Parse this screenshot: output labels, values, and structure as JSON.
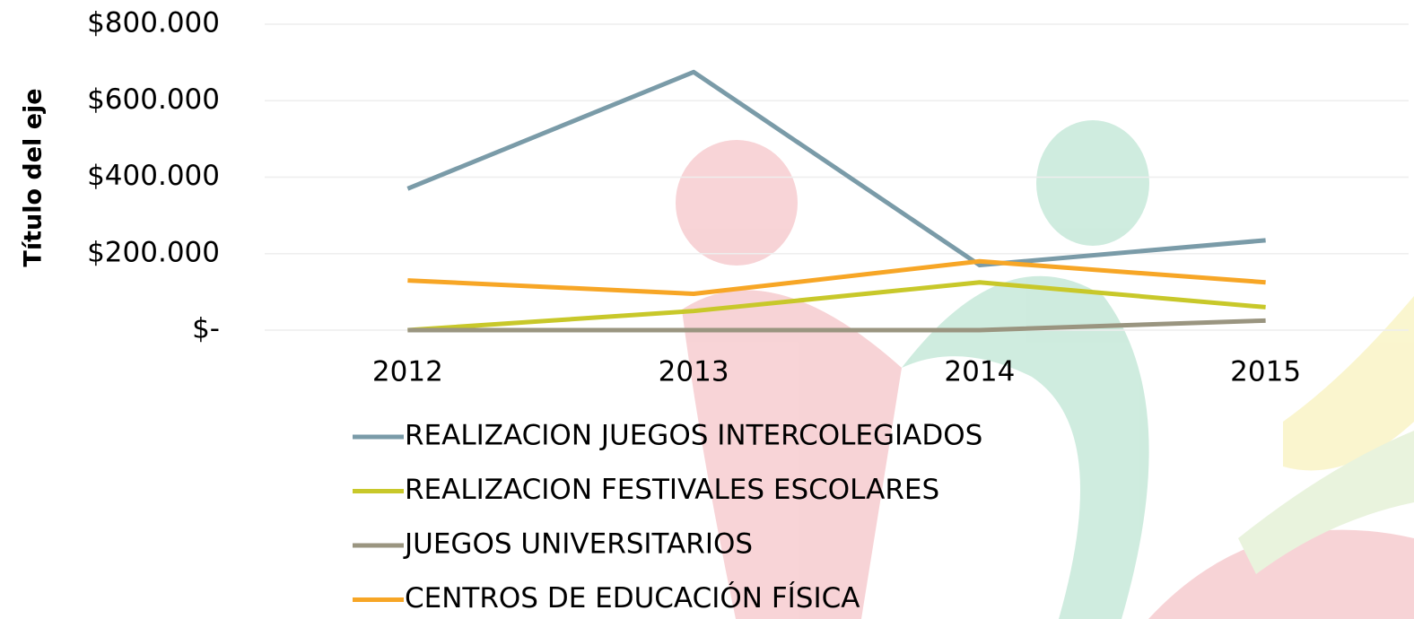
{
  "chart_data": {
    "type": "line",
    "y_axis_label": "Título del eje",
    "categories": [
      "2012",
      "2013",
      "2014",
      "2015"
    ],
    "series": [
      {
        "name": "REALIZACION JUEGOS INTERCOLEGIADOS",
        "color": "#7a9ba8",
        "values": [
          370000,
          675000,
          170000,
          235000
        ]
      },
      {
        "name": "REALIZACION FESTIVALES ESCOLARES",
        "color": "#c8c82a",
        "values": [
          0,
          50000,
          125000,
          60000
        ]
      },
      {
        "name": "JUEGOS UNIVERSITARIOS",
        "color": "#9a9580",
        "values": [
          0,
          0,
          0,
          25000
        ]
      },
      {
        "name": "CENTROS DE EDUCACIÓN FÍSICA",
        "color": "#f7a626",
        "values": [
          130000,
          95000,
          180000,
          125000
        ]
      }
    ],
    "ylim": [
      0,
      800000
    ],
    "yticks": [
      {
        "value": 0,
        "label": "$-"
      },
      {
        "value": 200000,
        "label": "$200.000"
      },
      {
        "value": 400000,
        "label": "$400.000"
      },
      {
        "value": 600000,
        "label": "$600.000"
      },
      {
        "value": 800000,
        "label": "$800.000"
      }
    ],
    "grid": true,
    "legend": "bottom"
  }
}
